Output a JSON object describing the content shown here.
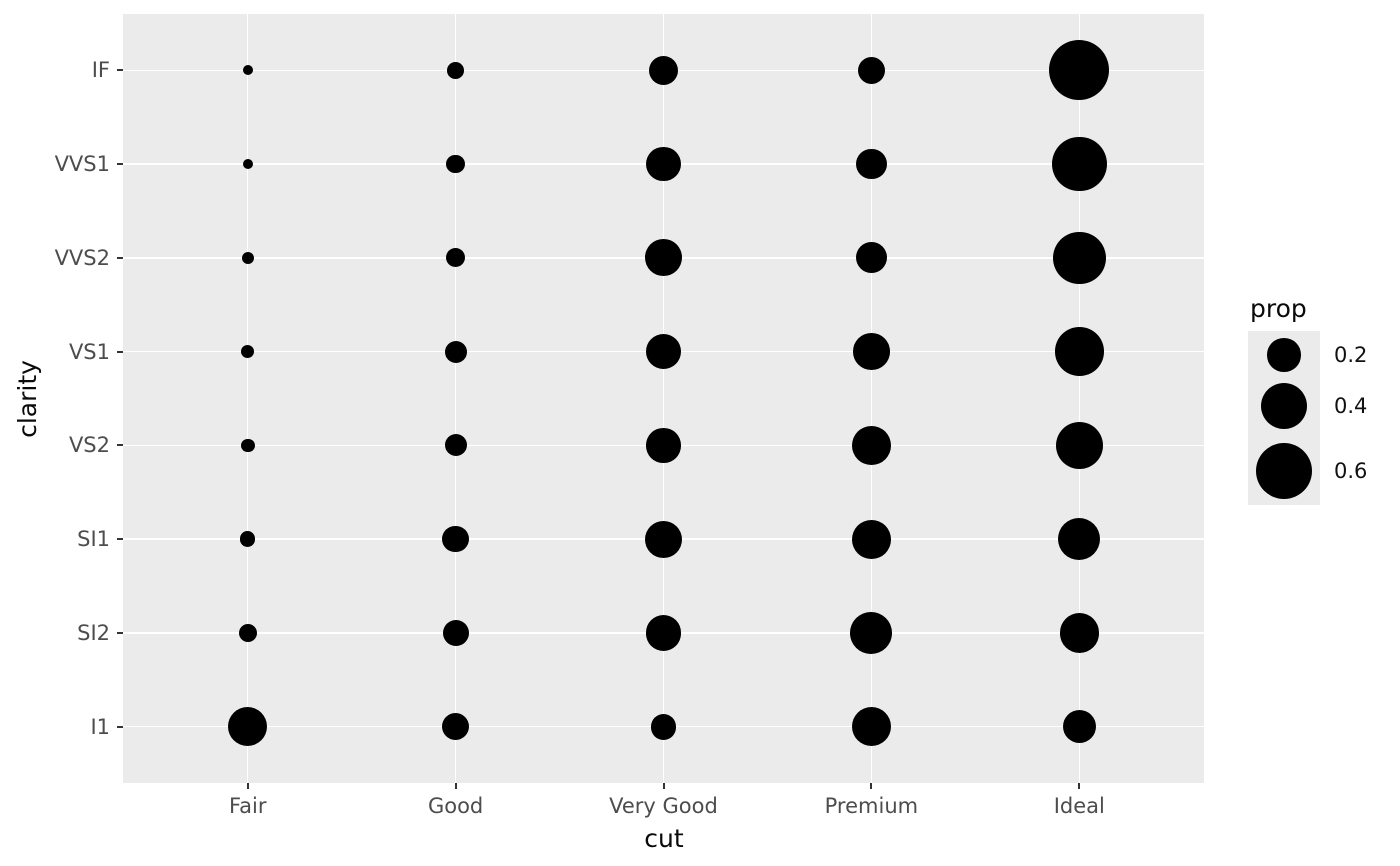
{
  "chart_data": {
    "type": "scatter",
    "subtype": "bubble-count",
    "title": "",
    "xlabel": "cut",
    "ylabel": "clarity",
    "x_categories": [
      "Fair",
      "Good",
      "Very Good",
      "Premium",
      "Ideal"
    ],
    "y_categories": [
      "IF",
      "VVS1",
      "VVS2",
      "VS1",
      "VS2",
      "SI1",
      "SI2",
      "I1"
    ],
    "size_variable": "prop",
    "series": [
      {
        "name": "IF",
        "props": [
          0.005,
          0.0397,
          0.1497,
          0.1285,
          0.6771
        ]
      },
      {
        "name": "VVS1",
        "props": [
          0.0047,
          0.0509,
          0.2159,
          0.1685,
          0.5601
        ]
      },
      {
        "name": "VVS2",
        "props": [
          0.0136,
          0.0565,
          0.2438,
          0.1717,
          0.5144
        ]
      },
      {
        "name": "VS1",
        "props": [
          0.0208,
          0.0793,
          0.2172,
          0.2434,
          0.4392
        ]
      },
      {
        "name": "VS2",
        "props": [
          0.0213,
          0.0798,
          0.2114,
          0.2739,
          0.4137
        ]
      },
      {
        "name": "SI1",
        "props": [
          0.0312,
          0.1194,
          0.248,
          0.2736,
          0.3277
        ]
      },
      {
        "name": "SI2",
        "props": [
          0.0507,
          0.1176,
          0.2284,
          0.3208,
          0.2826
        ]
      },
      {
        "name": "I1",
        "props": [
          0.2834,
          0.1296,
          0.1134,
          0.2767,
          0.197
        ]
      }
    ],
    "legend": {
      "title": "prop",
      "labels": [
        "0.2",
        "0.4",
        "0.6"
      ],
      "values": [
        0.2,
        0.4,
        0.6
      ],
      "position": "right"
    },
    "grid": "major-white-on-gray",
    "colors": {
      "point": "#000000",
      "panel_background": "#EBEBEB",
      "gridline": "#FFFFFF",
      "tick_mark": "#333333",
      "tick_label": "#4D4D4D",
      "axis_title": "#0a0a0a",
      "legend_key_background": "#EBEBEB",
      "figure_background": "#FFFFFF"
    }
  }
}
